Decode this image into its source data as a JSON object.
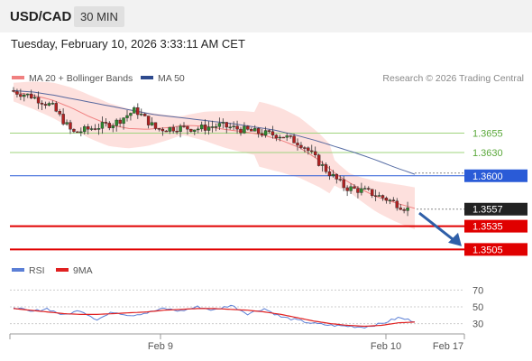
{
  "header": {
    "symbol": "USD/CAD",
    "timeframe": "30 MIN"
  },
  "timestamp": "Tuesday, February 10, 2026 3:33:11 AM CET",
  "legend": {
    "ma20_label": "MA 20 + Bollinger Bands",
    "ma20_color": "#f08080",
    "ma50_label": "MA 50",
    "ma50_color": "#2e4a8e",
    "credit": "Research © 2026 Trading Central"
  },
  "rsi_legend": {
    "rsi_label": "RSI",
    "rsi_color": "#5b7fd6",
    "ma9_label": "9MA",
    "ma9_color": "#e02020"
  },
  "x_labels": [
    "Feb 9",
    "Feb 10",
    "Feb 17"
  ],
  "chart_data": [
    {
      "type": "line",
      "title": "",
      "y_range": [
        1.3495,
        1.3715
      ],
      "levels": [
        {
          "label": "1.3655",
          "value": 1.3655,
          "kind": "resistance",
          "color": "#9fd47e"
        },
        {
          "label": "1.3630",
          "value": 1.363,
          "kind": "resistance",
          "color": "#9fd47e"
        },
        {
          "label": "1.3600",
          "value": 1.36,
          "kind": "pivot",
          "color": "#2a5bd7"
        },
        {
          "label": "1.3557",
          "value": 1.3557,
          "kind": "last",
          "color": "#222222"
        },
        {
          "label": "1.3535",
          "value": 1.3535,
          "kind": "support",
          "color": "#e00000"
        },
        {
          "label": "1.3505",
          "value": 1.3505,
          "kind": "support",
          "color": "#e00000"
        }
      ],
      "series": [
        {
          "name": "MA 20 + Bollinger Bands",
          "values": [
            1.3708,
            1.3704,
            1.3698,
            1.3688,
            1.3676,
            1.3666,
            1.3661,
            1.366,
            1.3662,
            1.3665,
            1.3664,
            1.366,
            1.3657,
            1.3653,
            1.3646,
            1.3636,
            1.362,
            1.36,
            1.3585,
            1.3573,
            1.3565,
            1.3558
          ]
        },
        {
          "name": "MA 50",
          "values": [
            1.371,
            1.3708,
            1.3704,
            1.3699,
            1.3694,
            1.3689,
            1.3684,
            1.3679,
            1.3676,
            1.3673,
            1.367,
            1.3667,
            1.3663,
            1.3659,
            1.3653,
            1.3646,
            1.3638,
            1.363,
            1.3621,
            1.3611,
            1.3602
          ]
        },
        {
          "name": "Price",
          "values": [
            1.371,
            1.3703,
            1.369,
            1.3655,
            1.3662,
            1.3668,
            1.3685,
            1.366,
            1.3662,
            1.3661,
            1.3665,
            1.366,
            1.3655,
            1.3652,
            1.364,
            1.361,
            1.3585,
            1.358,
            1.357,
            1.3557
          ]
        }
      ],
      "forecast": {
        "from": 1.3552,
        "to": 1.3508
      }
    },
    {
      "type": "line",
      "title": "",
      "ylim": [
        20,
        80
      ],
      "ticks": [
        "70",
        "50",
        "30"
      ],
      "series": [
        {
          "name": "RSI",
          "values": [
            50,
            44,
            48,
            40,
            46,
            35,
            44,
            40,
            43,
            48,
            45,
            50,
            46,
            52,
            42,
            48,
            38,
            34,
            30,
            28,
            27,
            26,
            30,
            37,
            33
          ]
        },
        {
          "name": "9MA",
          "values": [
            48,
            46,
            44,
            42,
            41,
            41,
            42,
            43,
            44,
            46,
            47,
            48,
            48,
            47,
            46,
            44,
            41,
            37,
            33,
            30,
            28,
            27,
            28,
            31,
            32
          ]
        }
      ]
    }
  ]
}
